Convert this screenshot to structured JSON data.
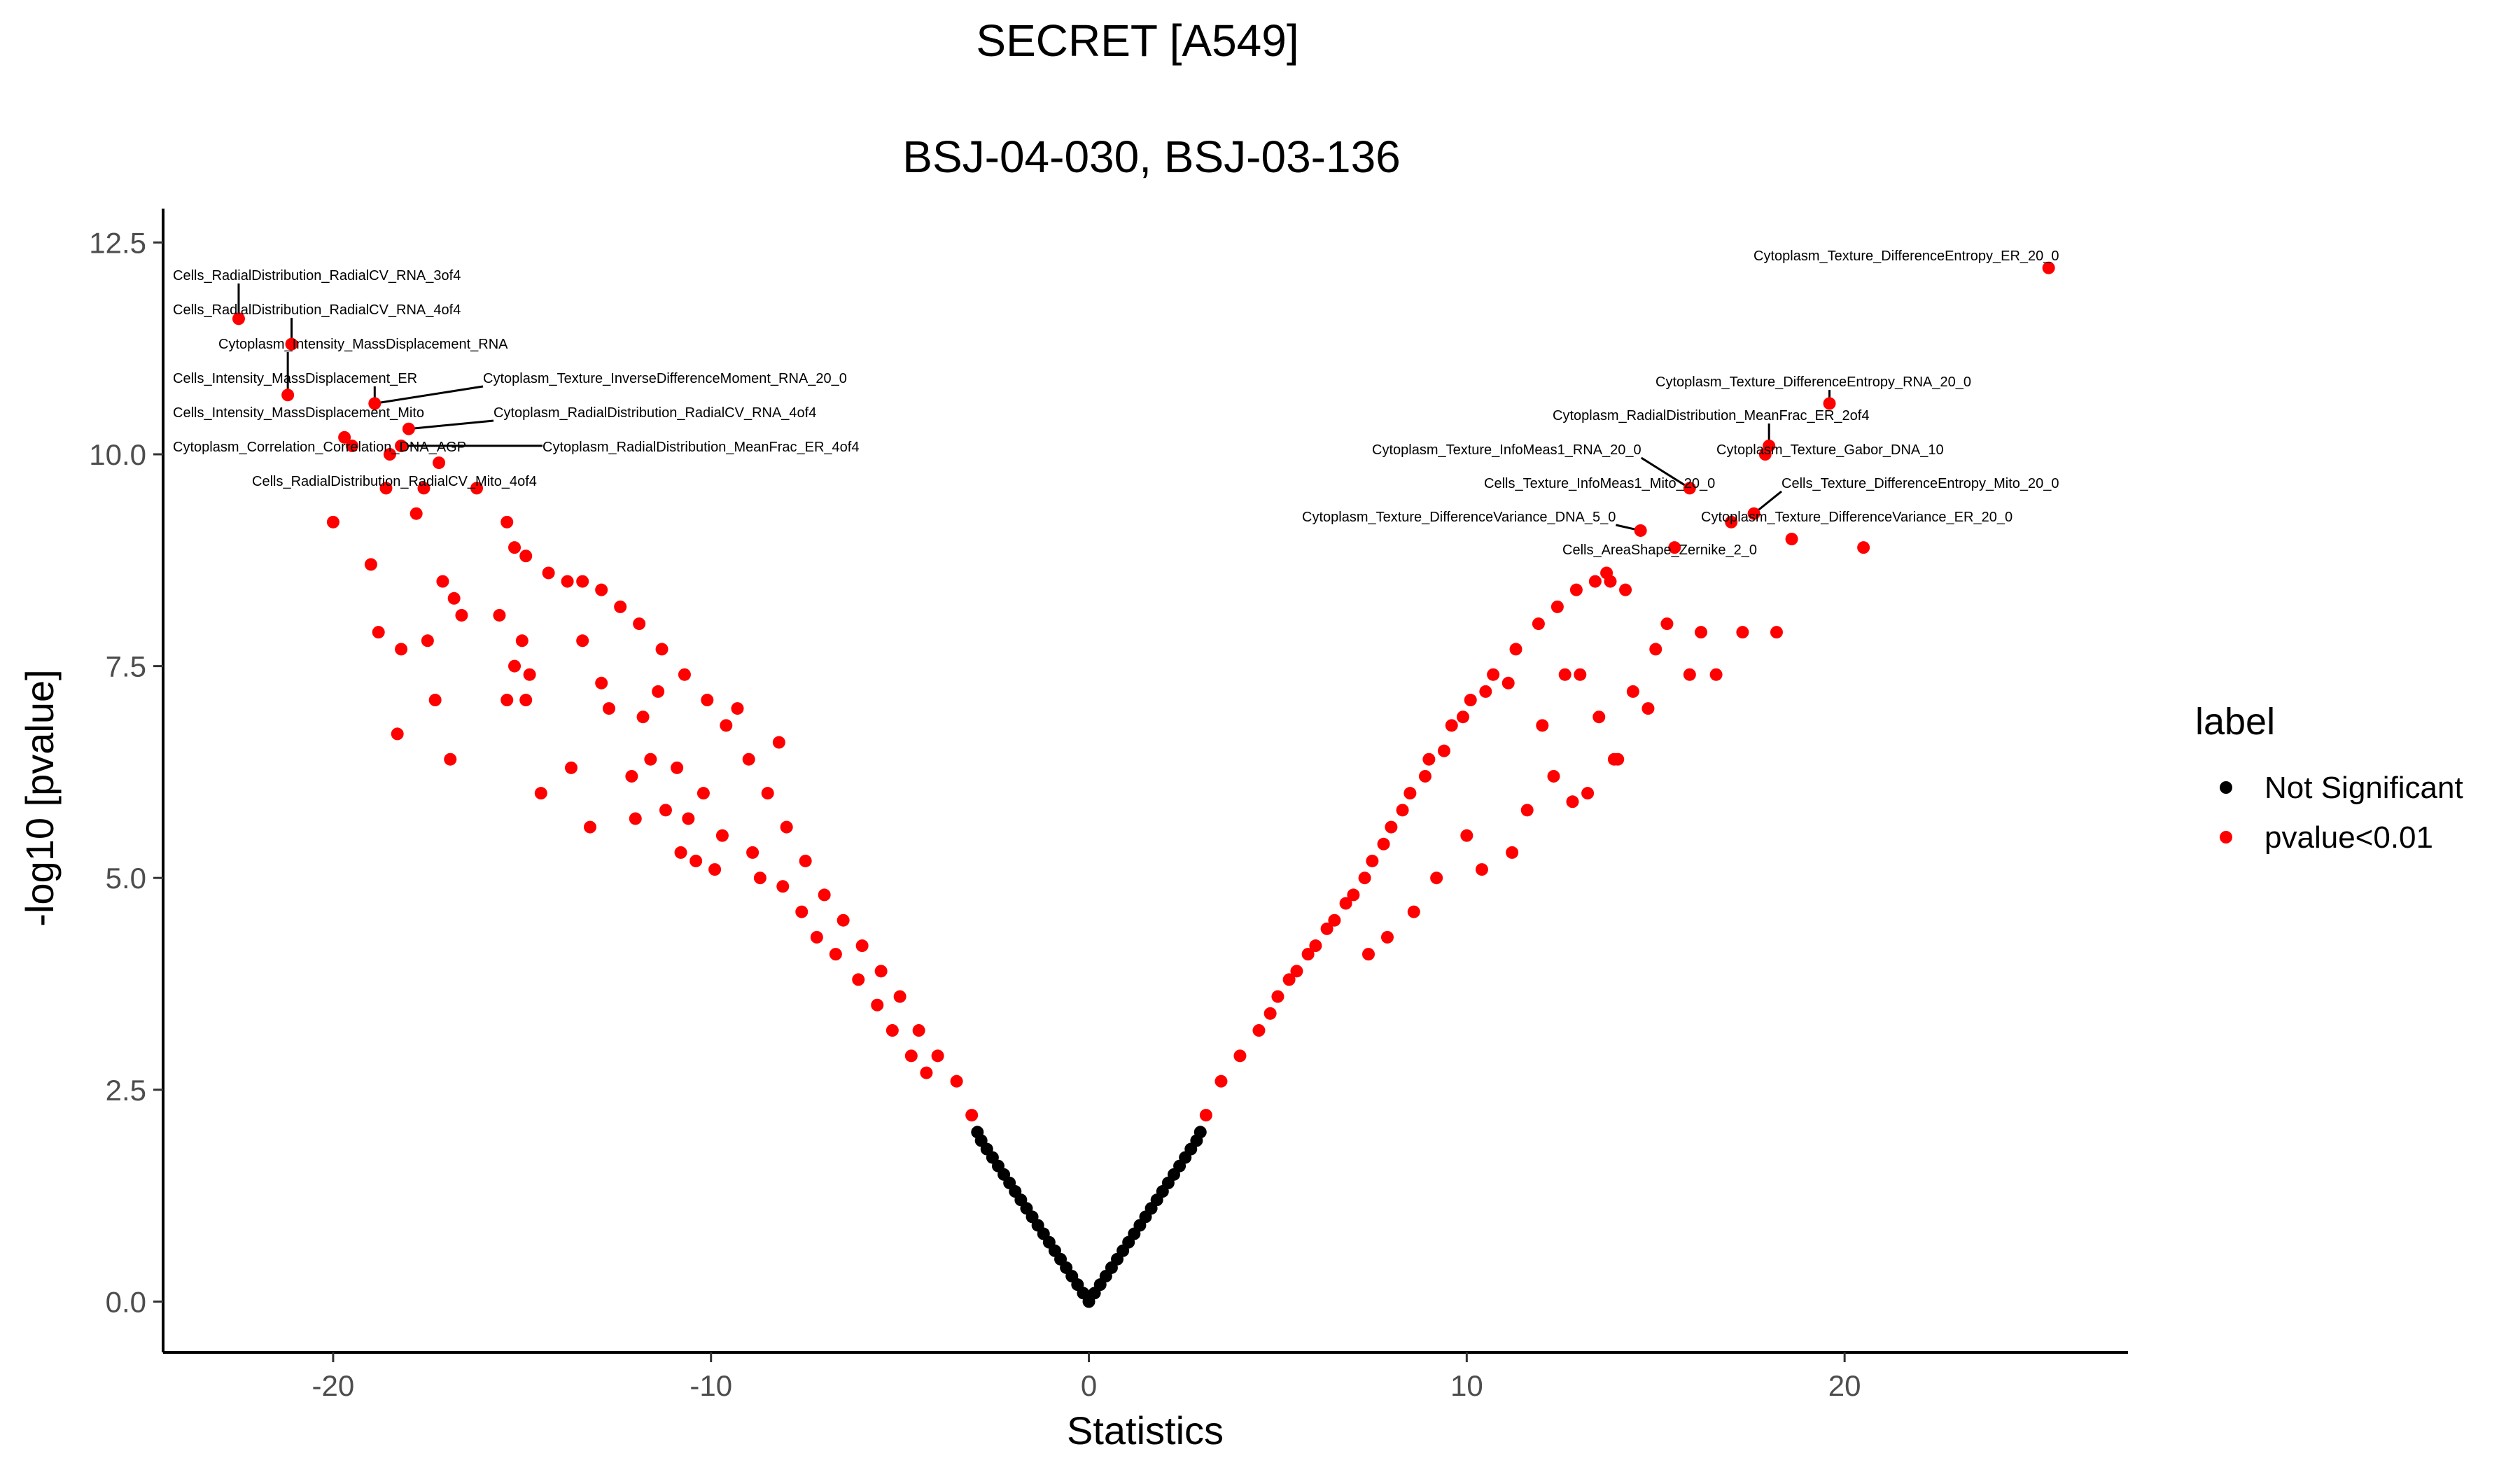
{
  "chart_data": {
    "type": "scatter",
    "title": "SECRET [A549]",
    "subtitle": "BSJ-04-030, BSJ-03-136",
    "xlabel": "Statistics",
    "ylabel": "-log10 [pvalue]",
    "xlim": [
      -24.5,
      27.5
    ],
    "ylim": [
      -0.6,
      12.9
    ],
    "x_ticks": [
      -20,
      -10,
      0,
      10,
      20
    ],
    "x_tick_labels": [
      "-20",
      "-10",
      "0",
      "10",
      "20"
    ],
    "y_ticks": [
      0.0,
      2.5,
      5.0,
      7.5,
      10.0,
      12.5
    ],
    "y_tick_labels": [
      "0.0",
      "2.5",
      "5.0",
      "7.5",
      "10.0",
      "12.5"
    ],
    "grid": false,
    "legend": {
      "title": "label",
      "position": "right",
      "entries": [
        {
          "name": "Not Significant",
          "color": "#000000"
        },
        {
          "name": "pvalue<0.01",
          "color": "#ff0000"
        }
      ]
    },
    "series": [
      {
        "name": "Not Significant",
        "color": "#000000",
        "points": [
          [
            0.0,
            0.0
          ],
          [
            0.15,
            0.1
          ],
          [
            -0.15,
            0.1
          ],
          [
            0.3,
            0.2
          ],
          [
            -0.3,
            0.2
          ],
          [
            0.45,
            0.3
          ],
          [
            -0.45,
            0.3
          ],
          [
            0.6,
            0.4
          ],
          [
            -0.6,
            0.4
          ],
          [
            0.75,
            0.5
          ],
          [
            -0.75,
            0.5
          ],
          [
            0.9,
            0.6
          ],
          [
            -0.9,
            0.6
          ],
          [
            1.05,
            0.7
          ],
          [
            -1.05,
            0.7
          ],
          [
            1.2,
            0.8
          ],
          [
            -1.2,
            0.8
          ],
          [
            1.35,
            0.9
          ],
          [
            -1.35,
            0.9
          ],
          [
            1.5,
            1.0
          ],
          [
            -1.5,
            1.0
          ],
          [
            1.65,
            1.1
          ],
          [
            -1.65,
            1.1
          ],
          [
            1.8,
            1.2
          ],
          [
            -1.8,
            1.2
          ],
          [
            1.95,
            1.3
          ],
          [
            -1.95,
            1.3
          ],
          [
            2.1,
            1.4
          ],
          [
            -2.1,
            1.4
          ],
          [
            2.25,
            1.5
          ],
          [
            -2.25,
            1.5
          ],
          [
            2.4,
            1.6
          ],
          [
            -2.4,
            1.6
          ],
          [
            2.55,
            1.7
          ],
          [
            -2.55,
            1.7
          ],
          [
            2.7,
            1.8
          ],
          [
            -2.7,
            1.8
          ],
          [
            2.85,
            1.9
          ],
          [
            -2.85,
            1.9
          ],
          [
            2.95,
            2.0
          ],
          [
            -2.95,
            2.0
          ]
        ]
      },
      {
        "name": "pvalue<0.01",
        "color": "#ff0000",
        "points": [
          [
            25.4,
            12.2
          ],
          [
            -22.5,
            11.6
          ],
          [
            -21.1,
            11.3
          ],
          [
            -21.2,
            10.7
          ],
          [
            -18.9,
            10.6
          ],
          [
            -18.0,
            10.3
          ],
          [
            -18.2,
            10.1
          ],
          [
            -18.5,
            10.0
          ],
          [
            -17.2,
            9.9
          ],
          [
            -18.6,
            9.6
          ],
          [
            -17.6,
            9.6
          ],
          [
            -16.2,
            9.6
          ],
          [
            19.6,
            10.6
          ],
          [
            18.0,
            10.1
          ],
          [
            17.9,
            10.0
          ],
          [
            15.9,
            9.6
          ],
          [
            17.6,
            9.3
          ],
          [
            17.0,
            9.2
          ],
          [
            14.6,
            9.1
          ],
          [
            15.5,
            8.9
          ],
          [
            18.6,
            9.0
          ],
          [
            20.5,
            8.9
          ],
          [
            -19.7,
            10.2
          ],
          [
            -19.5,
            10.1
          ],
          [
            -20.0,
            9.2
          ],
          [
            -17.8,
            9.3
          ],
          [
            -15.4,
            9.2
          ],
          [
            -15.2,
            8.9
          ],
          [
            -14.9,
            8.8
          ],
          [
            -14.3,
            8.6
          ],
          [
            -13.8,
            8.5
          ],
          [
            -13.4,
            8.5
          ],
          [
            -12.9,
            8.4
          ],
          [
            -12.4,
            8.2
          ],
          [
            -11.9,
            8.0
          ],
          [
            -11.3,
            7.7
          ],
          [
            -10.7,
            7.4
          ],
          [
            -10.1,
            7.1
          ],
          [
            -9.6,
            6.8
          ],
          [
            -9.0,
            6.4
          ],
          [
            -8.5,
            6.0
          ],
          [
            -8.0,
            5.6
          ],
          [
            -7.5,
            5.2
          ],
          [
            -7.0,
            4.8
          ],
          [
            -6.5,
            4.5
          ],
          [
            -6.0,
            4.2
          ],
          [
            -5.5,
            3.9
          ],
          [
            -5.0,
            3.6
          ],
          [
            -4.5,
            3.2
          ],
          [
            -4.0,
            2.9
          ],
          [
            -3.5,
            2.6
          ],
          [
            -3.1,
            2.2
          ],
          [
            -19.0,
            8.7
          ],
          [
            -18.8,
            7.9
          ],
          [
            -18.2,
            7.7
          ],
          [
            -17.5,
            7.8
          ],
          [
            -16.8,
            8.3
          ],
          [
            -17.1,
            8.5
          ],
          [
            -16.6,
            8.1
          ],
          [
            -15.6,
            8.1
          ],
          [
            -15.0,
            7.8
          ],
          [
            -15.2,
            7.5
          ],
          [
            -14.8,
            7.4
          ],
          [
            -15.4,
            7.1
          ],
          [
            -14.9,
            7.1
          ],
          [
            -17.3,
            7.1
          ],
          [
            -18.3,
            6.7
          ],
          [
            -16.9,
            6.4
          ],
          [
            -14.5,
            6.0
          ],
          [
            -13.4,
            7.8
          ],
          [
            -12.9,
            7.3
          ],
          [
            -12.7,
            7.0
          ],
          [
            -11.8,
            6.9
          ],
          [
            -11.6,
            6.4
          ],
          [
            -10.9,
            6.3
          ],
          [
            -10.2,
            6.0
          ],
          [
            -11.2,
            5.8
          ],
          [
            -10.6,
            5.7
          ],
          [
            -9.7,
            5.5
          ],
          [
            -10.8,
            5.3
          ],
          [
            -9.9,
            5.1
          ],
          [
            -8.9,
            5.3
          ],
          [
            -8.7,
            5.0
          ],
          [
            -8.1,
            4.9
          ],
          [
            -7.6,
            4.6
          ],
          [
            -7.2,
            4.3
          ],
          [
            -6.7,
            4.1
          ],
          [
            -6.1,
            3.8
          ],
          [
            -5.6,
            3.5
          ],
          [
            -5.2,
            3.2
          ],
          [
            -4.7,
            2.9
          ],
          [
            -4.3,
            2.7
          ],
          [
            -9.3,
            7.0
          ],
          [
            -8.2,
            6.6
          ],
          [
            -13.7,
            6.3
          ],
          [
            -12.1,
            6.2
          ],
          [
            -11.4,
            7.2
          ],
          [
            -10.4,
            5.2
          ],
          [
            -13.2,
            5.6
          ],
          [
            -12.0,
            5.7
          ],
          [
            4.0,
            2.9
          ],
          [
            4.5,
            3.2
          ],
          [
            5.0,
            3.6
          ],
          [
            5.5,
            3.9
          ],
          [
            6.0,
            4.2
          ],
          [
            6.5,
            4.5
          ],
          [
            7.0,
            4.8
          ],
          [
            7.5,
            5.2
          ],
          [
            8.0,
            5.6
          ],
          [
            8.5,
            6.0
          ],
          [
            9.0,
            6.4
          ],
          [
            9.6,
            6.8
          ],
          [
            10.1,
            7.1
          ],
          [
            10.7,
            7.4
          ],
          [
            11.3,
            7.7
          ],
          [
            11.9,
            8.0
          ],
          [
            12.4,
            8.2
          ],
          [
            12.9,
            8.4
          ],
          [
            13.4,
            8.5
          ],
          [
            13.8,
            8.5
          ],
          [
            3.1,
            2.2
          ],
          [
            3.5,
            2.6
          ],
          [
            4.8,
            3.4
          ],
          [
            5.3,
            3.8
          ],
          [
            5.8,
            4.1
          ],
          [
            6.3,
            4.4
          ],
          [
            6.8,
            4.7
          ],
          [
            7.3,
            5.0
          ],
          [
            7.8,
            5.4
          ],
          [
            8.3,
            5.8
          ],
          [
            8.9,
            6.2
          ],
          [
            9.4,
            6.5
          ],
          [
            9.9,
            6.9
          ],
          [
            10.5,
            7.2
          ],
          [
            11.1,
            7.3
          ],
          [
            12.0,
            6.8
          ],
          [
            12.6,
            7.4
          ],
          [
            13.0,
            7.4
          ],
          [
            13.5,
            6.9
          ],
          [
            14.0,
            6.4
          ],
          [
            14.4,
            7.2
          ],
          [
            15.0,
            7.7
          ],
          [
            15.3,
            8.0
          ],
          [
            14.8,
            7.0
          ],
          [
            15.9,
            7.4
          ],
          [
            16.6,
            7.4
          ],
          [
            17.3,
            7.9
          ],
          [
            18.2,
            7.9
          ],
          [
            16.2,
            7.9
          ],
          [
            10.0,
            5.5
          ],
          [
            10.4,
            5.1
          ],
          [
            11.2,
            5.3
          ],
          [
            11.6,
            5.8
          ],
          [
            9.2,
            5.0
          ],
          [
            8.6,
            4.6
          ],
          [
            7.9,
            4.3
          ],
          [
            7.4,
            4.1
          ],
          [
            12.3,
            6.2
          ],
          [
            13.2,
            6.0
          ],
          [
            13.9,
            6.4
          ],
          [
            12.8,
            5.9
          ],
          [
            14.2,
            8.4
          ],
          [
            13.7,
            8.6
          ]
        ]
      }
    ],
    "annotations": [
      {
        "text": "Cytoplasm_Texture_DifferenceEntropy_ER_20_0",
        "x": 25.4,
        "y": 12.2
      },
      {
        "text": "Cells_RadialDistribution_RadialCV_RNA_3of4",
        "x": -22.5,
        "y": 11.6
      },
      {
        "text": "Cells_RadialDistribution_RadialCV_RNA_4of4",
        "x": -21.1,
        "y": 11.3
      },
      {
        "text": "Cytoplasm_Intensity_MassDisplacement_RNA",
        "x": -21.2,
        "y": 10.7
      },
      {
        "text": "Cells_Intensity_MassDisplacement_ER",
        "x": -18.9,
        "y": 10.6
      },
      {
        "text": "Cytoplasm_Texture_InverseDifferenceMoment_RNA_20_0",
        "x": -18.9,
        "y": 10.6
      },
      {
        "text": "Cells_Intensity_MassDisplacement_Mito",
        "x": -18.0,
        "y": 10.3
      },
      {
        "text": "Cytoplasm_RadialDistribution_RadialCV_RNA_4of4",
        "x": -18.0,
        "y": 10.3
      },
      {
        "text": "Cytoplasm_Correlation_Correlation_DNA_AGP",
        "x": -18.2,
        "y": 10.1
      },
      {
        "text": "Cytoplasm_RadialDistribution_MeanFrac_ER_4of4",
        "x": -18.2,
        "y": 10.1
      },
      {
        "text": "Cells_RadialDistribution_RadialCV_Mito_4of4",
        "x": -17.6,
        "y": 9.6
      },
      {
        "text": "Cytoplasm_Texture_DifferenceEntropy_RNA_20_0",
        "x": 19.6,
        "y": 10.6
      },
      {
        "text": "Cytoplasm_RadialDistribution_MeanFrac_ER_2of4",
        "x": 18.0,
        "y": 10.1
      },
      {
        "text": "Cytoplasm_Texture_InfoMeas1_RNA_20_0",
        "x": 15.9,
        "y": 9.6
      },
      {
        "text": "Cytoplasm_Texture_Gabor_DNA_10",
        "x": 17.9,
        "y": 10.0
      },
      {
        "text": "Cells_Texture_InfoMeas1_Mito_20_0",
        "x": 15.9,
        "y": 9.6
      },
      {
        "text": "Cells_Texture_DifferenceEntropy_Mito_20_0",
        "x": 17.6,
        "y": 9.3
      },
      {
        "text": "Cytoplasm_Texture_DifferenceVariance_DNA_5_0",
        "x": 14.6,
        "y": 9.1
      },
      {
        "text": "Cytoplasm_Texture_DifferenceVariance_ER_20_0",
        "x": 17.0,
        "y": 9.2
      },
      {
        "text": "Cells_AreaShape_Zernike_2_0",
        "x": 15.5,
        "y": 8.9
      }
    ]
  }
}
